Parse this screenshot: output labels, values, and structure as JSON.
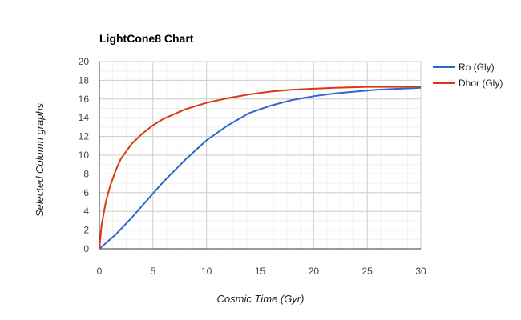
{
  "chart_data": {
    "type": "line",
    "title": "LightCone8 Chart",
    "xlabel": "Cosmic Time (Gyr)",
    "ylabel": "Selected Column graphs",
    "xlim": [
      0,
      30
    ],
    "ylim": [
      0,
      20
    ],
    "x_ticks": [
      0,
      5,
      10,
      15,
      20,
      25,
      30
    ],
    "y_ticks": [
      0,
      2,
      4,
      6,
      8,
      10,
      12,
      14,
      16,
      18,
      20
    ],
    "grid": true,
    "legend_position": "right",
    "series": [
      {
        "name": "Ro (Gly)",
        "color": "#3366cc",
        "points": [
          [
            0,
            0
          ],
          [
            1.5,
            1.5
          ],
          [
            3,
            3.3
          ],
          [
            5,
            5.9
          ],
          [
            6,
            7.2
          ],
          [
            8,
            9.5
          ],
          [
            10,
            11.6
          ],
          [
            12,
            13.2
          ],
          [
            14,
            14.5
          ],
          [
            16,
            15.3
          ],
          [
            18,
            15.9
          ],
          [
            20,
            16.3
          ],
          [
            22,
            16.6
          ],
          [
            24,
            16.8
          ],
          [
            26,
            17.0
          ],
          [
            28,
            17.1
          ],
          [
            30,
            17.2
          ]
        ]
      },
      {
        "name": "Dhor (Gly)",
        "color": "#dc3912",
        "points": [
          [
            0,
            0
          ],
          [
            0.2,
            2.5
          ],
          [
            0.6,
            5.0
          ],
          [
            1,
            6.7
          ],
          [
            1.5,
            8.3
          ],
          [
            2,
            9.6
          ],
          [
            3,
            11.2
          ],
          [
            4,
            12.3
          ],
          [
            5,
            13.2
          ],
          [
            6,
            13.9
          ],
          [
            8,
            14.9
          ],
          [
            10,
            15.6
          ],
          [
            12,
            16.1
          ],
          [
            14,
            16.5
          ],
          [
            16,
            16.8
          ],
          [
            18,
            17.0
          ],
          [
            20,
            17.1
          ],
          [
            22,
            17.2
          ],
          [
            25,
            17.3
          ],
          [
            28,
            17.3
          ],
          [
            30,
            17.35
          ]
        ]
      }
    ]
  }
}
